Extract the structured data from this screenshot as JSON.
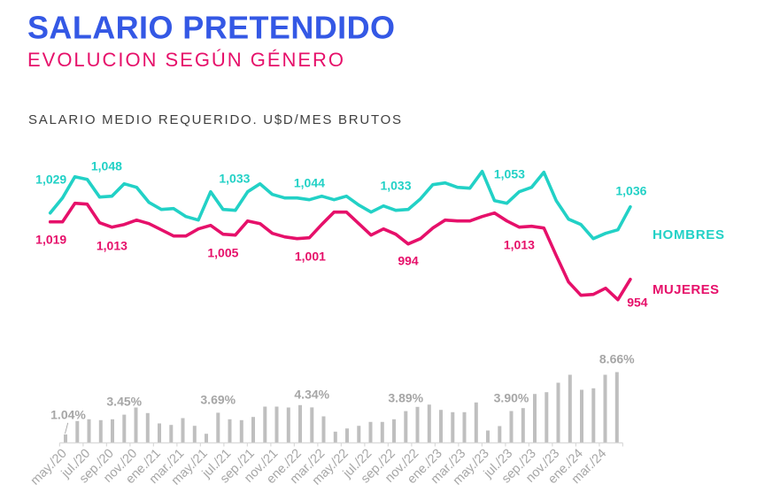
{
  "header": {
    "title": "SALARIO PRETENDIDO",
    "subtitle": "EVOLUCION SEGÚN GÉNERO"
  },
  "colors": {
    "title": "#3458e5",
    "subtitle": "#e6106a",
    "caption": "#404040",
    "bars": "#bfbfbf",
    "bar_labels": "#a6a6a6",
    "axis": "#d9d9d9",
    "tick_labels": "#a6a6a6"
  },
  "chart_data": [
    {
      "type": "line",
      "title": "SALARIO MEDIO REQUERIDO. U$D/MES BRUTOS",
      "legend": "right",
      "grid": false,
      "series": [
        {
          "name": "HOMBRES",
          "color": "#22d1c6",
          "values": [
            1029,
            1046,
            1070,
            1067,
            1047,
            1048,
            1062,
            1058,
            1041,
            1033,
            1034,
            1025,
            1021,
            1053,
            1033,
            1032,
            1053,
            1062,
            1050,
            1046,
            1046,
            1044,
            1048,
            1044,
            1048,
            1038,
            1030,
            1037,
            1032,
            1033,
            1045,
            1061,
            1063,
            1058,
            1057,
            1076,
            1043,
            1040,
            1053,
            1058,
            1075,
            1043,
            1022,
            1016,
            1000,
            1006,
            1010,
            1036
          ],
          "data_labels": [
            {
              "index": 0,
              "text": "1,029"
            },
            {
              "index": 5,
              "text": "1,048"
            },
            {
              "index": 14,
              "text": "1,033"
            },
            {
              "index": 21,
              "text": "1,044"
            },
            {
              "index": 29,
              "text": "1,033"
            },
            {
              "index": 38,
              "text": "1,053"
            },
            {
              "index": 47,
              "text": "1,036"
            }
          ]
        },
        {
          "name": "MUJERES",
          "color": "#e6106a",
          "values": [
            1019,
            1019,
            1040,
            1039,
            1018,
            1013,
            1016,
            1021,
            1017,
            1010,
            1003,
            1003,
            1011,
            1015,
            1005,
            1004,
            1020,
            1017,
            1006,
            1002,
            1000,
            1001,
            1016,
            1030,
            1030,
            1017,
            1004,
            1011,
            1005,
            994,
            1000,
            1012,
            1021,
            1020,
            1020,
            1025,
            1029,
            1020,
            1013,
            1014,
            1012,
            981,
            951,
            936,
            937,
            944,
            931,
            954
          ],
          "data_labels": [
            {
              "index": 0,
              "text": "1,019"
            },
            {
              "index": 5,
              "text": "1,013"
            },
            {
              "index": 14,
              "text": "1,005"
            },
            {
              "index": 21,
              "text": "1,001"
            },
            {
              "index": 29,
              "text": "994"
            },
            {
              "index": 38,
              "text": "1,013"
            },
            {
              "index": 47,
              "text": "954"
            }
          ]
        }
      ]
    },
    {
      "type": "bar",
      "title": "",
      "grid": false,
      "tick_every": 2,
      "x_tick_labels": [
        "may./20",
        "jul./20",
        "sep./20",
        "nov./20",
        "ene./21",
        "mar./21",
        "may./21",
        "jul./21",
        "sep./21",
        "nov./21",
        "ene./22",
        "mar./22",
        "may./22",
        "jul./22",
        "sep./22",
        "nov./22",
        "ene./23",
        "mar./23",
        "may./23",
        "jul./23",
        "sep./23",
        "nov./23",
        "ene./24",
        "mar./24"
      ],
      "values": [
        1.04,
        2.67,
        2.89,
        2.78,
        2.89,
        3.45,
        4.33,
        3.65,
        2.38,
        2.2,
        3.03,
        2.09,
        1.11,
        3.69,
        2.89,
        2.78,
        3.17,
        4.44,
        4.44,
        4.33,
        4.62,
        4.34,
        3.25,
        1.37,
        1.76,
        2.09,
        2.56,
        2.56,
        2.89,
        3.89,
        4.4,
        4.69,
        4.04,
        3.76,
        3.76,
        4.95,
        1.52,
        2.06,
        3.9,
        4.25,
        5.98,
        6.2,
        7.36,
        8.33,
        6.49,
        6.68,
        8.33,
        8.66
      ],
      "data_labels": [
        {
          "index": 0,
          "text": "1.04%"
        },
        {
          "index": 5,
          "text": "3.45%"
        },
        {
          "index": 13,
          "text": "3.69%"
        },
        {
          "index": 21,
          "text": "4.34%"
        },
        {
          "index": 29,
          "text": "3.89%"
        },
        {
          "index": 38,
          "text": "3.90%"
        },
        {
          "index": 47,
          "text": "8.66%"
        }
      ]
    }
  ]
}
